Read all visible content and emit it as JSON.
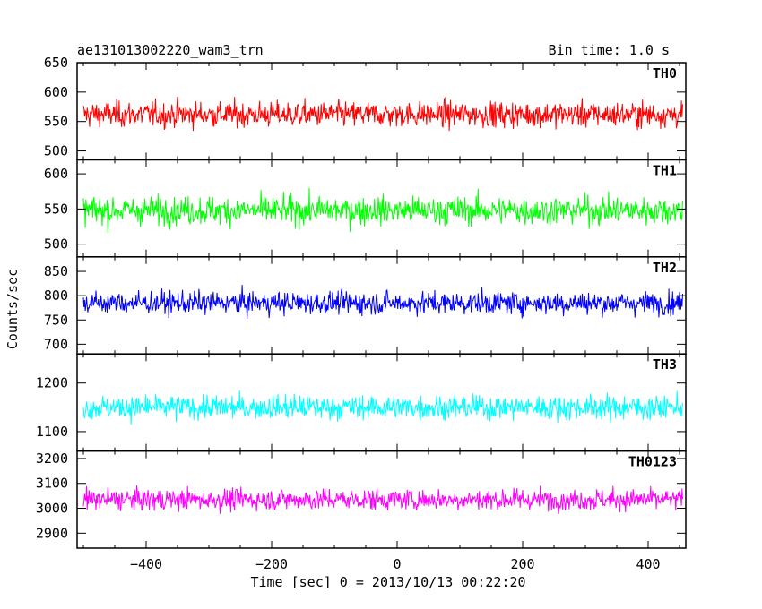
{
  "chart_data": {
    "type": "line",
    "title": "ae131013002220_wam3_trn",
    "bin_time": "Bin time: 1.0 s",
    "xlabel": "Time [sec] 0 = 2013/10/13 00:22:20",
    "ylabel": "Counts/sec",
    "xlim": [
      -510,
      460
    ],
    "x_range_data": [
      -500,
      455
    ],
    "x_ticks": [
      -400,
      -200,
      0,
      200,
      400
    ],
    "x_tick_labels": [
      "−400",
      "−200",
      "0",
      "200",
      "400"
    ],
    "panels": [
      {
        "name": "TH0",
        "color": "#ff0000",
        "ylim": [
          485,
          650
        ],
        "y_ticks": [
          500,
          550,
          600,
          650
        ],
        "y_tick_labels": [
          "500",
          "550",
          "600",
          "650"
        ],
        "mean": 562,
        "spread": 28
      },
      {
        "name": "TH1",
        "color": "#00ff00",
        "ylim": [
          482,
          620
        ],
        "y_ticks": [
          500,
          550,
          600
        ],
        "y_tick_labels": [
          "500",
          "550",
          "600"
        ],
        "mean": 548,
        "spread": 26
      },
      {
        "name": "TH2",
        "color": "#0000ff",
        "ylim": [
          680,
          880
        ],
        "y_ticks": [
          700,
          750,
          800,
          850
        ],
        "y_tick_labels": [
          "700",
          "750",
          "800",
          "850"
        ],
        "mean": 785,
        "spread": 30
      },
      {
        "name": "TH3",
        "color": "#00ffff",
        "ylim": [
          1060,
          1260
        ],
        "y_ticks": [
          1100,
          1200
        ],
        "y_tick_labels": [
          "1100",
          "1200"
        ],
        "mean": 1150,
        "spread": 32
      },
      {
        "name": "TH0123",
        "color": "#ff00ff",
        "ylim": [
          2840,
          3230
        ],
        "y_ticks": [
          2900,
          3000,
          3100,
          3200
        ],
        "y_tick_labels": [
          "2900",
          "3000",
          "3100",
          "3200"
        ],
        "mean": 3035,
        "spread": 55
      }
    ]
  }
}
